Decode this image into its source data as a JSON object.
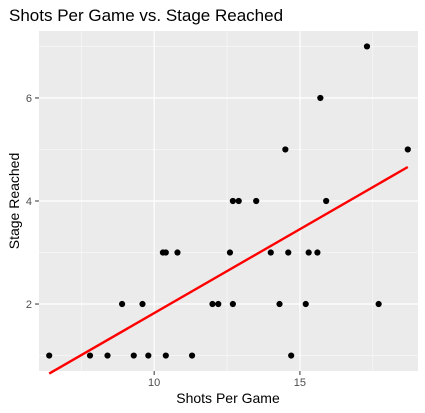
{
  "chart_data": {
    "type": "scatter",
    "title": "Shots Per Game vs. Stage Reached",
    "xlabel": "Shots Per Game",
    "ylabel": "Stage Reached",
    "xlim": [
      6.05,
      19.05
    ],
    "ylim": [
      0.7,
      7.3
    ],
    "x_ticks": [
      10,
      15
    ],
    "y_ticks": [
      2,
      4,
      6
    ],
    "x_tick_labels": [
      "10",
      "15"
    ],
    "y_tick_labels": [
      "2",
      "4",
      "6"
    ],
    "grid": true,
    "colors": {
      "panel": "#ebebeb",
      "grid_major": "#ffffff",
      "points": "#000000",
      "trend": "#ff0000",
      "tick_text": "#4d4d4d"
    },
    "points": [
      {
        "x": 6.4,
        "y": 1
      },
      {
        "x": 7.8,
        "y": 1
      },
      {
        "x": 8.4,
        "y": 1
      },
      {
        "x": 8.9,
        "y": 2
      },
      {
        "x": 9.3,
        "y": 1
      },
      {
        "x": 9.6,
        "y": 2
      },
      {
        "x": 9.8,
        "y": 1
      },
      {
        "x": 10.3,
        "y": 3
      },
      {
        "x": 10.4,
        "y": 3
      },
      {
        "x": 10.4,
        "y": 1
      },
      {
        "x": 10.8,
        "y": 3
      },
      {
        "x": 11.3,
        "y": 1
      },
      {
        "x": 12.0,
        "y": 2
      },
      {
        "x": 12.2,
        "y": 2
      },
      {
        "x": 12.6,
        "y": 3
      },
      {
        "x": 12.7,
        "y": 4
      },
      {
        "x": 12.7,
        "y": 2
      },
      {
        "x": 12.9,
        "y": 4
      },
      {
        "x": 13.5,
        "y": 4
      },
      {
        "x": 14.0,
        "y": 3
      },
      {
        "x": 14.3,
        "y": 2
      },
      {
        "x": 14.5,
        "y": 5
      },
      {
        "x": 14.6,
        "y": 3
      },
      {
        "x": 14.7,
        "y": 1
      },
      {
        "x": 15.2,
        "y": 2
      },
      {
        "x": 15.3,
        "y": 3
      },
      {
        "x": 15.6,
        "y": 3
      },
      {
        "x": 15.7,
        "y": 6
      },
      {
        "x": 15.9,
        "y": 4
      },
      {
        "x": 17.3,
        "y": 7
      },
      {
        "x": 17.7,
        "y": 2
      },
      {
        "x": 18.7,
        "y": 5
      }
    ],
    "trend_line": {
      "x": [
        6.4,
        18.7
      ],
      "y": [
        0.65,
        4.66
      ]
    }
  }
}
